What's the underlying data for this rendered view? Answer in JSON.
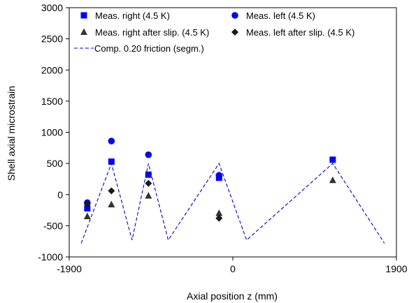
{
  "chart_data": {
    "type": "scatter",
    "xlabel": "Axial position z (mm)",
    "ylabel": "Shell axial microstrain",
    "xlim": [
      -1900,
      1900
    ],
    "ylim": [
      -1000,
      3000
    ],
    "xticks": [
      -1900,
      0,
      1900
    ],
    "yticks": [
      -1000,
      -500,
      0,
      500,
      1000,
      1500,
      2000,
      2500,
      3000
    ],
    "grid": false,
    "legend": "top",
    "series": [
      {
        "name": "Meas. right (4.5 K)",
        "marker": "square",
        "color": "#0000ff",
        "x": [
          -1690,
          -1410,
          -980,
          -160,
          1160
        ],
        "y": [
          -220,
          530,
          320,
          270,
          560
        ]
      },
      {
        "name": "Meas. left (4.5 K)",
        "marker": "circle",
        "color": "#0000ff",
        "x": [
          -1690,
          -1410,
          -980,
          -160
        ],
        "y": [
          -130,
          860,
          640,
          310
        ]
      },
      {
        "name": "Meas. right after slip. (4.5 K)",
        "marker": "triangle",
        "color": "#333333",
        "x": [
          -1690,
          -1410,
          -980,
          -160,
          1160
        ],
        "y": [
          -350,
          -160,
          -20,
          -300,
          230
        ]
      },
      {
        "name": "Meas. left after slip. (4.5 K)",
        "marker": "diamond",
        "color": "#1a1a1a",
        "x": [
          -1690,
          -1410,
          -980,
          -160
        ],
        "y": [
          -150,
          60,
          180,
          -380
        ]
      },
      {
        "name": "Comp. 0.20 friction (segm.)",
        "marker": "dashed-line",
        "color": "#0000cc",
        "x": [
          -1760,
          -1410,
          -1170,
          -980,
          -750,
          -160,
          160,
          1160,
          1760
        ],
        "y": [
          -780,
          500,
          -730,
          500,
          -730,
          500,
          -730,
          500,
          -780
        ]
      }
    ]
  }
}
